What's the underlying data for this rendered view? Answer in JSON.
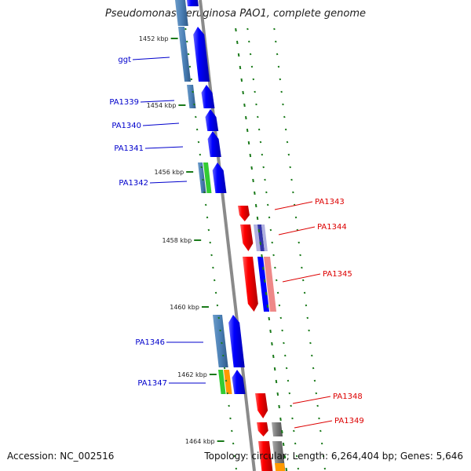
{
  "title": "Pseudomonas aeruginosa PAO1, complete genome",
  "accession": "Accession: NC_002516",
  "topology": "Topology: circular; Length: 6,264,404 bp; Genes: 5,646",
  "colors": {
    "forward_gene": "#0000ff",
    "reverse_gene": "#ff0000",
    "forward_label": "#0000cc",
    "reverse_label": "#dd0000",
    "backbone": "#888888",
    "tick_marks": "#1a7a1a",
    "cog_blue": "#4a7fb5",
    "cog_green": "#33cc33",
    "cog_orange": "#ff9900",
    "cog_grey": "#777777",
    "cog_lavender": "#b0b0e0",
    "cog_pink": "#ee8888"
  },
  "position_ticks": [
    {
      "kbp": 1452,
      "label": "1452 kbp"
    },
    {
      "kbp": 1454,
      "label": "1454 kbp"
    },
    {
      "kbp": 1456,
      "label": "1456 kbp"
    },
    {
      "kbp": 1458,
      "label": "1458 kbp"
    },
    {
      "kbp": 1460,
      "label": "1460 kbp"
    },
    {
      "kbp": 1462,
      "label": "1462 kbp"
    },
    {
      "kbp": 1464,
      "label": "1464 kbp"
    }
  ],
  "genes": [
    {
      "label": "ggt",
      "strand": "forward",
      "cog": "cog_blue"
    },
    {
      "label": "PA1339",
      "strand": "forward",
      "cog": "cog_blue"
    },
    {
      "label": "PA1340",
      "strand": "forward",
      "cog": "cog_blue"
    },
    {
      "label": "PA1341",
      "strand": "forward",
      "cog": "cog_blue"
    },
    {
      "label": "PA1342",
      "strand": "forward",
      "cog": "cog_green"
    },
    {
      "label": "PA1343",
      "strand": "reverse",
      "cog": ""
    },
    {
      "label": "PA1344",
      "strand": "reverse",
      "cog": "cog_lavender"
    },
    {
      "label": "PA1345",
      "strand": "reverse",
      "cog": "cog_pink"
    },
    {
      "label": "PA1346",
      "strand": "forward",
      "cog": "cog_blue"
    },
    {
      "label": "PA1347",
      "strand": "forward",
      "cog": "cog_orange"
    },
    {
      "label": "PA1348",
      "strand": "reverse",
      "cog": ""
    },
    {
      "label": "PA1349",
      "strand": "reverse",
      "cog": "cog_grey"
    }
  ]
}
